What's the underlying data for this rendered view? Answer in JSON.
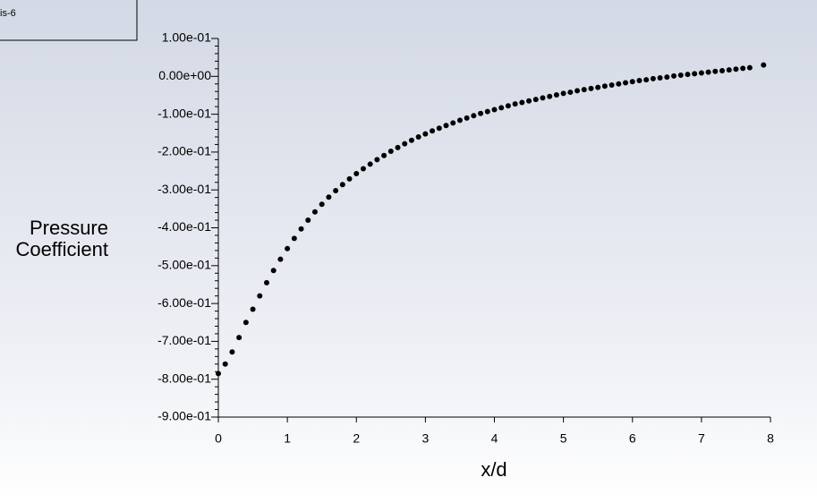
{
  "chart_data": {
    "type": "scatter",
    "xlabel": "x/d",
    "ylabel": [
      "Pressure",
      "Coefficient"
    ],
    "xlim": [
      0,
      8
    ],
    "xticks": [
      0,
      1,
      2,
      3,
      4,
      5,
      6,
      7,
      8
    ],
    "ylim": [
      -0.9,
      0.1
    ],
    "yticks": [
      {
        "value": -0.9,
        "label": "-9.00e-01"
      },
      {
        "value": -0.8,
        "label": "-8.00e-01"
      },
      {
        "value": -0.7,
        "label": "-7.00e-01"
      },
      {
        "value": -0.6,
        "label": "-6.00e-01"
      },
      {
        "value": -0.5,
        "label": "-5.00e-01"
      },
      {
        "value": -0.4,
        "label": "-4.00e-01"
      },
      {
        "value": -0.3,
        "label": "-3.00e-01"
      },
      {
        "value": -0.2,
        "label": "-2.00e-01"
      },
      {
        "value": -0.1,
        "label": "-1.00e-01"
      },
      {
        "value": 0,
        "label": "0.00e+00"
      },
      {
        "value": 0.1,
        "label": "1.00e-01"
      }
    ],
    "series": [
      {
        "name": "is-6",
        "color": "#000000",
        "x": [
          0.0,
          0.1,
          0.2,
          0.3,
          0.4,
          0.5,
          0.6,
          0.7,
          0.8,
          0.9,
          1.0,
          1.1,
          1.2,
          1.3,
          1.4,
          1.5,
          1.6,
          1.7,
          1.8,
          1.9,
          2.0,
          2.1,
          2.2,
          2.3,
          2.4,
          2.5,
          2.6,
          2.7,
          2.8,
          2.9,
          3.0,
          3.1,
          3.2,
          3.3,
          3.4,
          3.5,
          3.6,
          3.7,
          3.8,
          3.9,
          4.0,
          4.1,
          4.2,
          4.3,
          4.4,
          4.5,
          4.6,
          4.7,
          4.8,
          4.9,
          5.0,
          5.1,
          5.2,
          5.3,
          5.4,
          5.5,
          5.6,
          5.7,
          5.8,
          5.9,
          6.0,
          6.1,
          6.2,
          6.3,
          6.4,
          6.5,
          6.6,
          6.7,
          6.8,
          6.9,
          7.0,
          7.1,
          7.2,
          7.3,
          7.4,
          7.5,
          7.6,
          7.7,
          7.9
        ],
        "values": [
          -0.785,
          -0.76,
          -0.728,
          -0.69,
          -0.65,
          -0.615,
          -0.58,
          -0.545,
          -0.513,
          -0.483,
          -0.455,
          -0.428,
          -0.403,
          -0.38,
          -0.358,
          -0.338,
          -0.319,
          -0.302,
          -0.286,
          -0.271,
          -0.257,
          -0.244,
          -0.232,
          -0.22,
          -0.209,
          -0.198,
          -0.188,
          -0.178,
          -0.169,
          -0.16,
          -0.152,
          -0.144,
          -0.137,
          -0.13,
          -0.123,
          -0.116,
          -0.11,
          -0.104,
          -0.098,
          -0.093,
          -0.088,
          -0.083,
          -0.078,
          -0.073,
          -0.069,
          -0.065,
          -0.061,
          -0.057,
          -0.053,
          -0.049,
          -0.045,
          -0.042,
          -0.038,
          -0.035,
          -0.032,
          -0.029,
          -0.026,
          -0.023,
          -0.02,
          -0.017,
          -0.014,
          -0.011,
          -0.009,
          -0.006,
          -0.004,
          -0.002,
          0.001,
          0.003,
          0.005,
          0.007,
          0.009,
          0.011,
          0.013,
          0.015,
          0.017,
          0.019,
          0.021,
          0.023,
          0.03
        ]
      }
    ]
  }
}
